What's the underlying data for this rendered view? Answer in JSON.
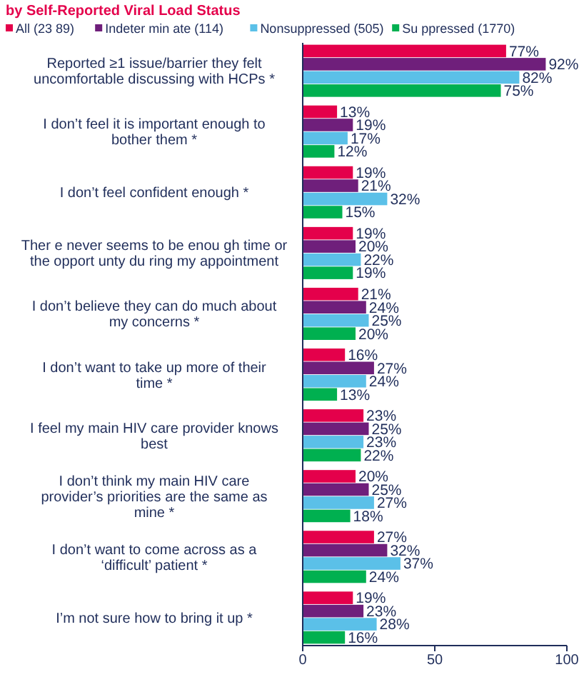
{
  "chart_data": {
    "type": "bar",
    "orientation": "horizontal",
    "title": "by Self-Reported Viral Load Status",
    "categories": [
      "Reported ≥1 issue/barrier they felt uncomfortable discussing with HCPs *",
      "I don’t feel it is important enough to bother them *",
      "I don’t feel confident enough *",
      "Ther e never seems to be enou gh time or the opport unty du ring my appointment",
      "I don’t believe they can do much about my concerns *",
      "I don’t want to take up more of their time *",
      "I feel my main HIV care  provider knows best",
      "I don’t think my main HIV care provider’s priorities are the same as mine *",
      "I don’t want to come across as a ‘difficult’ patient *",
      "I’m not sure how to bring it up *"
    ],
    "series": [
      {
        "name": "All (23 89)",
        "color": "#e4004b",
        "values": [
          77,
          13,
          19,
          19,
          21,
          16,
          23,
          20,
          27,
          19
        ],
        "value_labels": [
          "77%",
          "13%",
          "19%",
          "19%",
          "21%",
          "16%",
          "23%",
          "20%",
          "27%",
          "19%"
        ]
      },
      {
        "name": "Indeter min ate (114)",
        "color": "#6f1f7b",
        "values": [
          92,
          19,
          21,
          20,
          24,
          27,
          25,
          25,
          32,
          23
        ],
        "value_labels": [
          "92%",
          "19%",
          "21%",
          "20%",
          "24%",
          "27%",
          "25%",
          "25%",
          "32%",
          "23%"
        ]
      },
      {
        "name": "Nonsuppressed (505)",
        "color": "#5bc0e8",
        "values": [
          82,
          17,
          32,
          22,
          25,
          24,
          23,
          27,
          37,
          28
        ],
        "value_labels": [
          "82%",
          "17%",
          "32%",
          "22%",
          "25%",
          "24%",
          "23%",
          "27%",
          "37%",
          "28%"
        ]
      },
      {
        "name": "Su ppressed (1770)",
        "color": "#00b050",
        "values": [
          75,
          12,
          15,
          19,
          20,
          13,
          22,
          18,
          24,
          16
        ],
        "value_labels": [
          "75%",
          "12%",
          "15%",
          "19%",
          "20%",
          "13%",
          "22%",
          "18%",
          "24%",
          "16%"
        ]
      }
    ],
    "xlim": [
      0,
      100
    ],
    "xticks": [
      0,
      50,
      100
    ],
    "grid": false,
    "legend": "top"
  }
}
